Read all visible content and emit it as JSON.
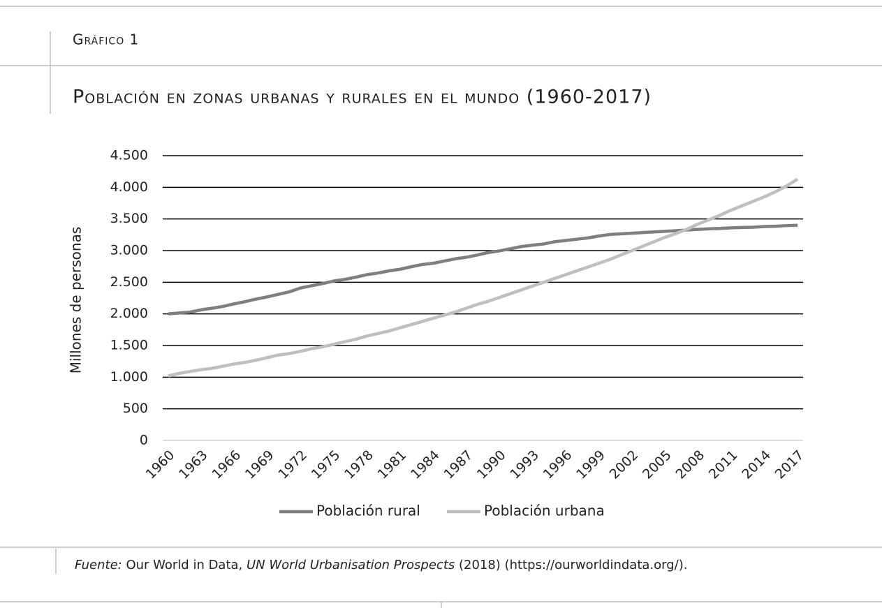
{
  "chart_data": {
    "type": "line",
    "label": "Gráfico 1",
    "title": "Población en zonas urbanas y rurales en el mundo (1960-2017)",
    "ylabel": "Millones de personas",
    "categories": [
      "1960",
      null,
      null,
      "1963",
      null,
      null,
      "1966",
      null,
      null,
      "1969",
      null,
      null,
      "1972",
      null,
      null,
      "1975",
      null,
      null,
      "1978",
      null,
      null,
      "1981",
      null,
      null,
      "1984",
      null,
      null,
      "1987",
      null,
      null,
      "1990",
      null,
      null,
      "1993",
      null,
      null,
      "1996",
      null,
      null,
      "1999",
      null,
      null,
      "2002",
      null,
      null,
      "2005",
      null,
      null,
      "2008",
      null,
      null,
      "2011",
      null,
      null,
      "2014",
      null,
      null,
      "2017"
    ],
    "series": [
      {
        "name": "Población rural",
        "color": "#7f7f7f",
        "values": [
          2000,
          2015,
          2030,
          2065,
          2090,
          2120,
          2160,
          2195,
          2235,
          2270,
          2310,
          2350,
          2410,
          2445,
          2480,
          2520,
          2545,
          2580,
          2620,
          2645,
          2680,
          2705,
          2745,
          2780,
          2800,
          2835,
          2870,
          2895,
          2930,
          2970,
          2995,
          3030,
          3065,
          3085,
          3105,
          3140,
          3160,
          3180,
          3200,
          3230,
          3255,
          3265,
          3275,
          3285,
          3295,
          3305,
          3315,
          3325,
          3335,
          3345,
          3350,
          3360,
          3365,
          3370,
          3380,
          3385,
          3395,
          3400
        ]
      },
      {
        "name": "Población urbana",
        "color": "#bfbfbf",
        "values": [
          1020,
          1060,
          1090,
          1120,
          1140,
          1175,
          1210,
          1235,
          1270,
          1310,
          1350,
          1375,
          1410,
          1450,
          1480,
          1520,
          1560,
          1600,
          1650,
          1690,
          1730,
          1780,
          1830,
          1880,
          1930,
          1980,
          2030,
          2090,
          2150,
          2200,
          2260,
          2320,
          2380,
          2440,
          2500,
          2560,
          2620,
          2680,
          2740,
          2800,
          2860,
          2930,
          3000,
          3070,
          3140,
          3210,
          3270,
          3340,
          3420,
          3490,
          3560,
          3640,
          3710,
          3780,
          3850,
          3930,
          4020,
          4130
        ]
      }
    ],
    "ylim": [
      0,
      4500
    ],
    "yticks": [
      0,
      500,
      {
        "value": 1000,
        "label": "1.000"
      },
      {
        "value": 1500,
        "label": "1.500"
      },
      {
        "value": 2000,
        "label": "2.000"
      },
      {
        "value": 2500,
        "label": "2.500"
      },
      {
        "value": 3000,
        "label": "3.000"
      },
      {
        "value": 3500,
        "label": "3.500"
      },
      {
        "value": 4000,
        "label": "4.000"
      },
      {
        "value": 4500,
        "label": "4.500"
      }
    ],
    "grid": true,
    "legend": "bottom",
    "source": {
      "prefix": "Fuente:",
      "text1": " Our World in Data, ",
      "work": "UN World Urbanisation Prospects",
      "text2": " (2018) (https://ourworldindata.org/)."
    }
  }
}
